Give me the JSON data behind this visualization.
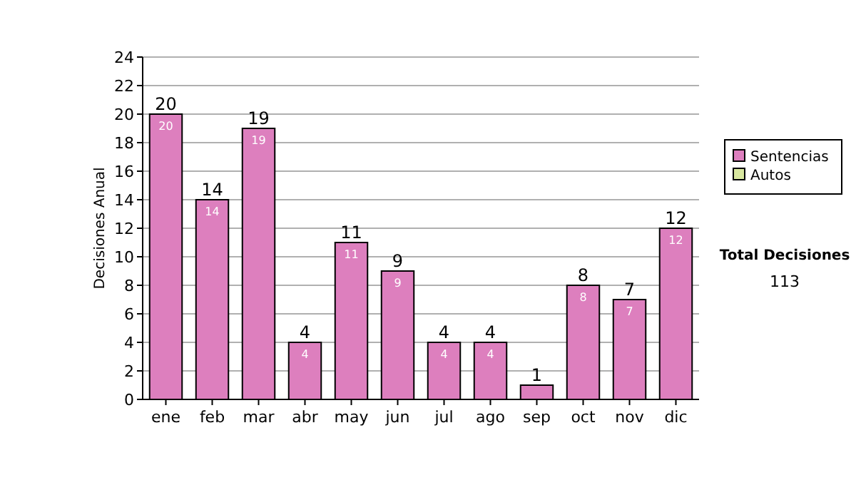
{
  "chart_data": {
    "type": "bar",
    "stacked": true,
    "ylabel": "Decisiones Anual",
    "categories": [
      "ene",
      "feb",
      "mar",
      "abr",
      "may",
      "jun",
      "jul",
      "ago",
      "sep",
      "oct",
      "nov",
      "dic"
    ],
    "series": [
      {
        "name": "Sentencias",
        "color": "#dd7fbe",
        "values": [
          20,
          14,
          19,
          4,
          11,
          9,
          4,
          4,
          1,
          8,
          7,
          12
        ],
        "value_labels": [
          "20",
          "14",
          "19",
          "4",
          "11",
          "9",
          "4",
          "4",
          null,
          "8",
          "7",
          "12"
        ]
      },
      {
        "name": "Autos",
        "color": "#d9e8a0",
        "values": [
          0,
          0,
          0,
          0,
          0,
          0,
          0,
          0,
          0,
          0,
          0,
          0
        ],
        "value_labels": [
          null,
          null,
          null,
          null,
          null,
          null,
          null,
          null,
          null,
          null,
          null,
          null
        ]
      }
    ],
    "totals": [
      "20",
      "14",
      "19",
      "4",
      "11",
      "9",
      "4",
      "4",
      "1",
      "8",
      "7",
      "12"
    ],
    "ylim": [
      0,
      24
    ],
    "yticks": [
      0,
      2,
      4,
      6,
      8,
      10,
      12,
      14,
      16,
      18,
      20,
      22,
      24
    ],
    "grid": "y",
    "legend": "right",
    "annotations": [
      "Total Decisiones",
      "113"
    ]
  }
}
